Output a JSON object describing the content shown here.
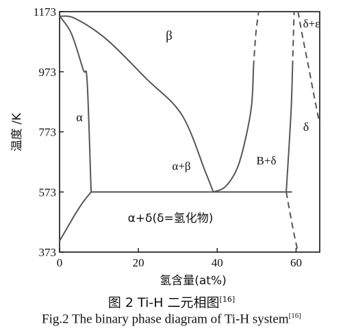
{
  "chart_data": {
    "type": "phase-diagram",
    "xlabel": "氢含量(at%)",
    "ylabel": "温度 /K",
    "xlim": [
      0,
      66
    ],
    "ylim": [
      373,
      1173
    ],
    "xticks": [
      "0",
      "20",
      "40",
      "60"
    ],
    "yticks": [
      "373",
      "573",
      "773",
      "973",
      "1173"
    ],
    "regions": [
      {
        "name": "beta",
        "label": "β"
      },
      {
        "name": "alpha",
        "label": "α"
      },
      {
        "name": "alpha-beta",
        "label": "α+β"
      },
      {
        "name": "beta-delta",
        "label": "B+δ"
      },
      {
        "name": "delta",
        "label": "δ"
      },
      {
        "name": "delta-epsilon",
        "label": "δ+ε"
      },
      {
        "name": "alpha-delta",
        "label": "α+δ(δ=氢化物)"
      }
    ],
    "eutectoid": {
      "x": 39,
      "y": 573
    },
    "boundaries": [
      {
        "name": "alpha-solvus",
        "style": "solid",
        "points": [
          [
            0,
            1158
          ],
          [
            3,
            1100
          ],
          [
            6,
            980
          ],
          [
            7,
            940
          ],
          [
            8,
            573
          ]
        ]
      },
      {
        "name": "beta-transus",
        "style": "solid",
        "points": [
          [
            0,
            1158
          ],
          [
            4,
            1150
          ],
          [
            12,
            1080
          ],
          [
            22,
            950
          ],
          [
            31,
            830
          ],
          [
            37,
            640
          ],
          [
            39,
            573
          ]
        ]
      },
      {
        "name": "beta-delta-left",
        "style": "solid",
        "points": [
          [
            39,
            573
          ],
          [
            42,
            590
          ],
          [
            45,
            650
          ],
          [
            47,
            740
          ],
          [
            48.7,
            860
          ],
          [
            49.2,
            990
          ]
        ]
      },
      {
        "name": "beta-delta-left-dashed",
        "style": "dashed",
        "points": [
          [
            49.2,
            990
          ],
          [
            49.8,
            1100
          ],
          [
            50.5,
            1173
          ]
        ]
      },
      {
        "name": "beta-delta-right",
        "style": "solid",
        "points": [
          [
            57.5,
            573
          ],
          [
            58.2,
            720
          ],
          [
            58.8,
            860
          ],
          [
            59.1,
            990
          ]
        ]
      },
      {
        "name": "beta-delta-right-dashed",
        "style": "dashed",
        "points": [
          [
            59.1,
            990
          ],
          [
            59.3,
            1080
          ],
          [
            59.5,
            1173
          ]
        ]
      },
      {
        "name": "delta-lower-dashed",
        "style": "dashed",
        "points": [
          [
            57.5,
            573
          ],
          [
            58.8,
            480
          ],
          [
            59.7,
            420
          ],
          [
            60.5,
            373
          ]
        ]
      },
      {
        "name": "delta-epsilon-dashed",
        "style": "dashed",
        "points": [
          [
            60.5,
            1173
          ],
          [
            61.5,
            1100
          ],
          [
            63.3,
            980
          ],
          [
            64.9,
            870
          ],
          [
            66,
            800
          ]
        ]
      },
      {
        "name": "eutectoid-isotherm",
        "style": "solid",
        "points": [
          [
            8,
            573
          ],
          [
            59,
            573
          ]
        ]
      },
      {
        "name": "alpha-low-solvus",
        "style": "solid",
        "points": [
          [
            0,
            410
          ],
          [
            2,
            455
          ],
          [
            4,
            500
          ],
          [
            6,
            540
          ],
          [
            8,
            573
          ]
        ]
      }
    ]
  },
  "captions": {
    "cn": "图 2  Ti-H 二元相图",
    "cn_ref": "[16]",
    "en": "Fig.2  The binary phase diagram of Ti-H system",
    "en_ref": "[16]"
  }
}
